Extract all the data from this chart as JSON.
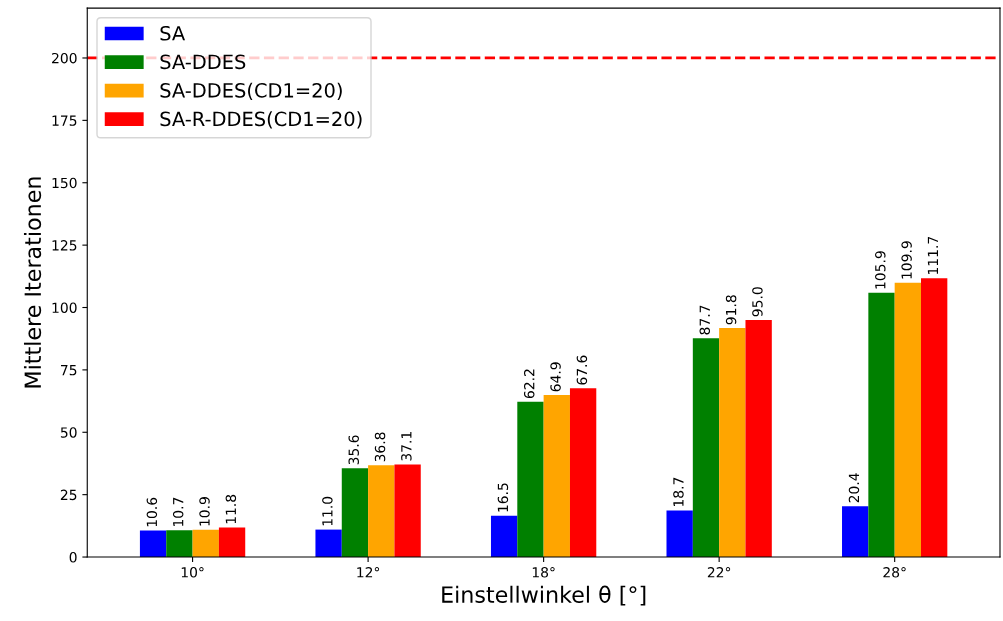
{
  "chart_data": {
    "type": "bar",
    "xlabel": "Einstellwinkel θ [°]",
    "ylabel": "Mittlere Iterationen",
    "categories": [
      "10°",
      "12°",
      "18°",
      "22°",
      "28°"
    ],
    "series": [
      {
        "name": "SA",
        "color": "#0000ff",
        "values": [
          10.6,
          11.0,
          16.5,
          18.7,
          20.4
        ],
        "value_labels": [
          "10.6",
          "11.0",
          "16.5",
          "18.7",
          "20.4"
        ]
      },
      {
        "name": "SA-DDES",
        "color": "#008000",
        "values": [
          10.7,
          35.6,
          62.2,
          87.7,
          105.9
        ],
        "value_labels": [
          "10.7",
          "35.6",
          "62.2",
          "87.7",
          "105.9"
        ]
      },
      {
        "name": "SA-DDES(CD1=20)",
        "color": "#ffa500",
        "values": [
          10.9,
          36.8,
          64.9,
          91.8,
          109.9
        ],
        "value_labels": [
          "10.9",
          "36.8",
          "64.9",
          "91.8",
          "109.9"
        ]
      },
      {
        "name": "SA-R-DDES(CD1=20)",
        "color": "#ff0000",
        "values": [
          11.8,
          37.1,
          67.6,
          95.0,
          111.7
        ],
        "value_labels": [
          "11.8",
          "37.1",
          "67.6",
          "95.0",
          "111.7"
        ]
      }
    ],
    "ylim": [
      0,
      220
    ],
    "yticks": [
      0,
      25,
      50,
      75,
      100,
      125,
      150,
      175,
      200
    ],
    "ref_lines": [
      {
        "axis": "y",
        "value": 200,
        "color": "#ff0000",
        "line_style": "dashed"
      }
    ],
    "legend": "top left",
    "grid": false
  }
}
